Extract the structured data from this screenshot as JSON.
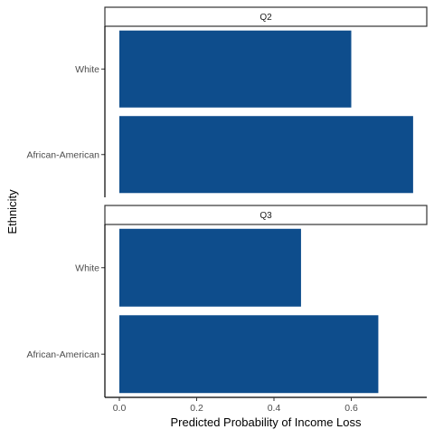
{
  "chart_data": {
    "type": "bar",
    "orientation": "horizontal",
    "facet_by": "quarter",
    "xlabel": "Predicted Probability of Income Loss",
    "ylabel": "Ethnicity",
    "xlim": [
      0,
      0.8
    ],
    "x_ticks": [
      "0.0",
      "0.2",
      "0.4",
      "0.6"
    ],
    "x_tick_values": [
      0,
      0.2,
      0.4,
      0.6
    ],
    "categories": [
      "White",
      "African-American"
    ],
    "bar_color": "#0e4d8c",
    "grid": false,
    "panels": [
      {
        "label": "Q2",
        "values": [
          0.6,
          0.76
        ]
      },
      {
        "label": "Q3",
        "values": [
          0.47,
          0.67
        ]
      }
    ]
  }
}
